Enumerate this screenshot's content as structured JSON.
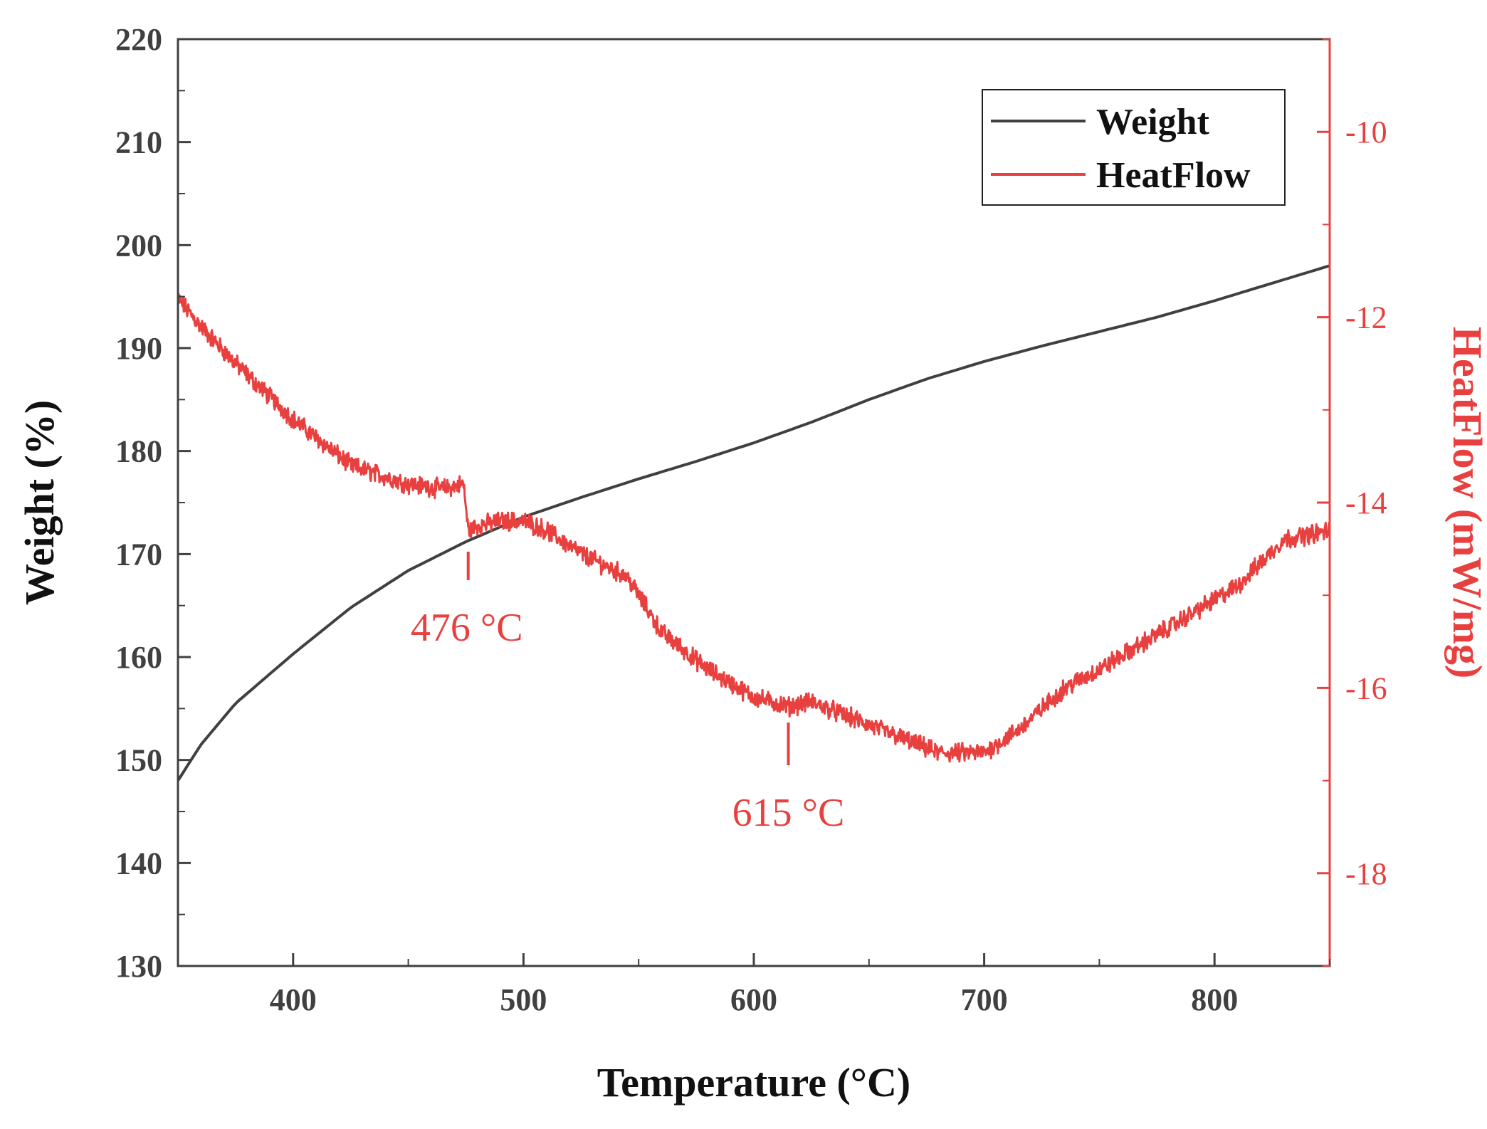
{
  "chart_data": {
    "type": "line",
    "xlabel": "Temperature (°C)",
    "ylabel": "Weight (%)",
    "y2label": "HeatFlow (mW/mg)",
    "xlim": [
      350,
      850
    ],
    "ylim": [
      130,
      220
    ],
    "y2lim": [
      -19,
      -9
    ],
    "x_ticks": [
      400,
      500,
      600,
      700,
      800
    ],
    "y_ticks": [
      130,
      140,
      150,
      160,
      170,
      180,
      190,
      200,
      210,
      220
    ],
    "y2_ticks": [
      -10,
      -12,
      -14,
      -16,
      -18
    ],
    "legend_position": "top-right",
    "colors": {
      "weight": "#404040",
      "heatflow": "#e8403f",
      "axis_right": "#e8403f"
    },
    "series": [
      {
        "name": "Weight",
        "axis": "left",
        "x": [
          350,
          360,
          375,
          400,
          425,
          450,
          475,
          500,
          525,
          550,
          575,
          600,
          625,
          650,
          675,
          700,
          725,
          750,
          775,
          800,
          825,
          850
        ],
        "y": [
          148.0,
          151.5,
          155.5,
          160.3,
          164.8,
          168.4,
          171.2,
          173.6,
          175.5,
          177.3,
          179.0,
          180.8,
          182.8,
          185.0,
          187.0,
          188.7,
          190.2,
          191.6,
          193.0,
          194.6,
          196.3,
          198.0
        ]
      },
      {
        "name": "HeatFlow",
        "axis": "right",
        "x": [
          350,
          360,
          375,
          400,
          425,
          450,
          465,
          474,
          476,
          480,
          490,
          500,
          510,
          525,
          545,
          560,
          580,
          600,
          615,
          625,
          640,
          660,
          680,
          700,
          715,
          735,
          750,
          770,
          790,
          810,
          830,
          840,
          850
        ],
        "y": [
          -11.8,
          -12.1,
          -12.5,
          -13.1,
          -13.6,
          -13.8,
          -13.85,
          -13.8,
          -14.3,
          -14.25,
          -14.2,
          -14.2,
          -14.3,
          -14.55,
          -14.8,
          -15.4,
          -15.8,
          -16.1,
          -16.2,
          -16.15,
          -16.3,
          -16.5,
          -16.7,
          -16.7,
          -16.45,
          -16.0,
          -15.8,
          -15.5,
          -15.2,
          -14.9,
          -14.4,
          -14.35,
          -14.3
        ]
      }
    ],
    "annotations": [
      {
        "text": "476 °C",
        "x": 476
      },
      {
        "text": "615 °C",
        "x": 615
      }
    ]
  }
}
